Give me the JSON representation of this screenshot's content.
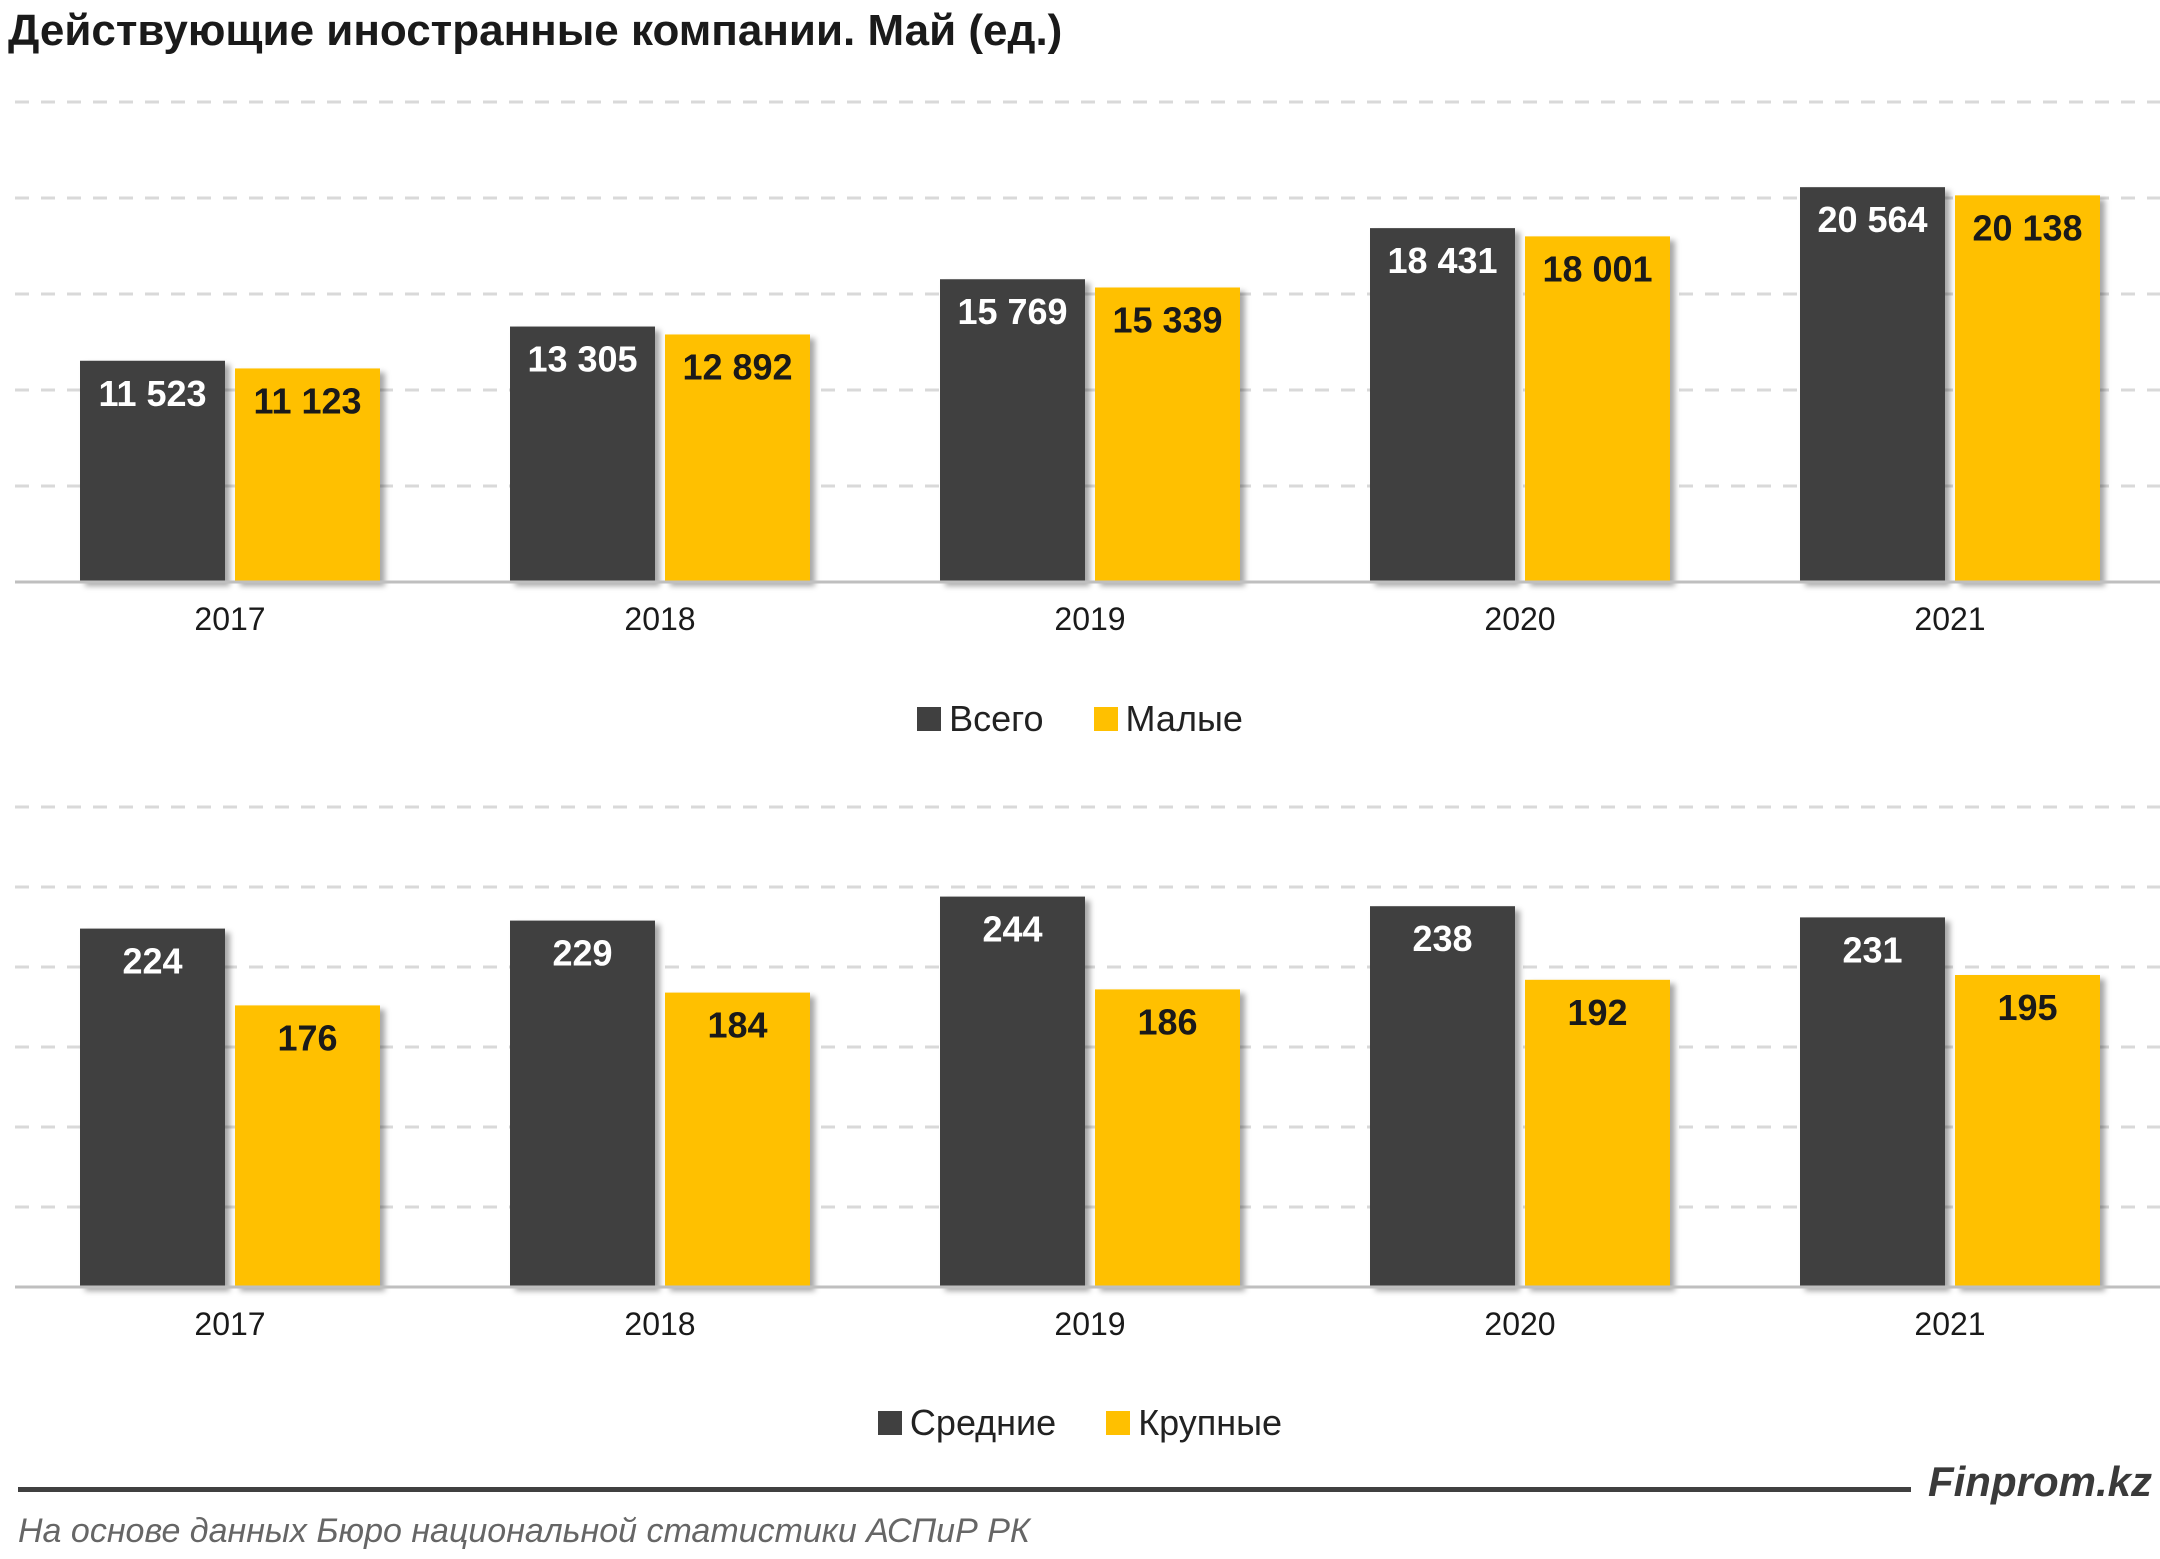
{
  "title": "Действующие иностранные компании. Май (ед.)",
  "colors": {
    "dark": "#404040",
    "yellow": "#FFC000",
    "grid": "#d9d9d9",
    "axis": "#bfbfbf"
  },
  "chart_data": [
    {
      "type": "bar",
      "categories": [
        "2017",
        "2018",
        "2019",
        "2020",
        "2021"
      ],
      "series": [
        {
          "name": "Всего",
          "color": "#404040",
          "values": [
            11523,
            13305,
            15769,
            18431,
            20564
          ],
          "labels": [
            "11 523",
            "13 305",
            "15 769",
            "18 431",
            "20 564"
          ]
        },
        {
          "name": "Малые",
          "color": "#FFC000",
          "values": [
            11123,
            12892,
            15339,
            18001,
            20138
          ],
          "labels": [
            "11 123",
            "12 892",
            "15 339",
            "18 001",
            "20 138"
          ]
        }
      ],
      "ylim": [
        0,
        25000
      ],
      "gridlines": [
        5000,
        10000,
        15000,
        20000,
        25000
      ],
      "legend_position": "bottom"
    },
    {
      "type": "bar",
      "categories": [
        "2017",
        "2018",
        "2019",
        "2020",
        "2021"
      ],
      "series": [
        {
          "name": "Средние",
          "color": "#404040",
          "values": [
            224,
            229,
            244,
            238,
            231
          ],
          "labels": [
            "224",
            "229",
            "244",
            "238",
            "231"
          ]
        },
        {
          "name": "Крупные",
          "color": "#FFC000",
          "values": [
            176,
            184,
            186,
            192,
            195
          ],
          "labels": [
            "176",
            "184",
            "186",
            "192",
            "195"
          ]
        }
      ],
      "ylim": [
        0,
        300
      ],
      "gridlines": [
        50,
        100,
        150,
        200,
        250,
        300
      ],
      "legend_position": "bottom"
    }
  ],
  "brand": "Finprom.kz",
  "source": "На основе данных  Бюро национальной  статистики АСПиР РК"
}
